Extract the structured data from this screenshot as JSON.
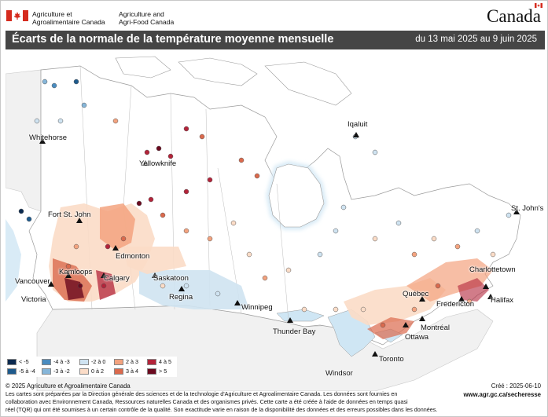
{
  "header": {
    "dept_fr_line1": "Agriculture et",
    "dept_fr_line2": "Agroalimentaire Canada",
    "dept_en_line1": "Agriculture and",
    "dept_en_line2": "Agri-Food Canada",
    "wordmark": "Canada"
  },
  "titlebar": {
    "title": "Écarts de la normale de la température moyenne mensuelle",
    "date_range": "du 13 mai 2025 au 9 juin 2025"
  },
  "map": {
    "cities": {
      "whitehorse": "Whitehorse",
      "yellowknife": "Yellowknife",
      "iqaluit": "Iqaluit",
      "fort_st_john": "Fort St. John",
      "edmonton": "Edmonton",
      "kamloops": "Kamloops",
      "calgary": "Calgary",
      "vancouver": "Vancouver",
      "victoria": "Victoria",
      "saskatoon": "Saskatoon",
      "regina": "Regina",
      "winnipeg": "Winnipeg",
      "thunder_bay": "Thunder Bay",
      "windsor": "Windsor",
      "toronto": "Toronto",
      "ottawa": "Ottawa",
      "montreal": "Montréal",
      "quebec": "Québec",
      "fredericton": "Fredericton",
      "charlottetown": "Charlottetown",
      "halifax": "Halifax",
      "st_johns": "St. John's"
    },
    "colors": {
      "water": "#cfe6f4",
      "land": "#ffffff",
      "border": "#9a9a9a"
    }
  },
  "legend": [
    {
      "label": "< -5",
      "color": "#0b2a4f"
    },
    {
      "label": "-5 à -4",
      "color": "#1e5a8c"
    },
    {
      "label": "-4 à -3",
      "color": "#4a8cc0"
    },
    {
      "label": "-3 à -2",
      "color": "#86b6d9"
    },
    {
      "label": "-2 à 0",
      "color": "#cfe3f1"
    },
    {
      "label": "0 à 2",
      "color": "#fbdcc7"
    },
    {
      "label": "2 à 3",
      "color": "#f3a37f"
    },
    {
      "label": "3 à 4",
      "color": "#db6a4d"
    },
    {
      "label": "4 à 5",
      "color": "#b3243a"
    },
    {
      "label": "> 5",
      "color": "#6b0a1f"
    }
  ],
  "footer": {
    "copyright": "© 2025 Agriculture et Agroalimentaire Canada",
    "created": "Créé : 2025-06-10",
    "url": "www.agr.gc.ca/secheresse",
    "note_line1": "Les cartes sont préparées par la Direction générale des sciences et de la technologie d'Agriculture et Agroalimentaire Canada. Les données sont fournies en",
    "note_line2": "collaboration avec Environnement Canada, Ressources naturelles Canada et des organismes privés. Cette carte a été créée à l'aide de données en temps quasi",
    "note_line3": "réel (TQR) qui ont été soumises à un certain contrôle de la qualité. Son exactitude varie en raison de la disponibilité des données et des erreurs possibles dans les données."
  }
}
